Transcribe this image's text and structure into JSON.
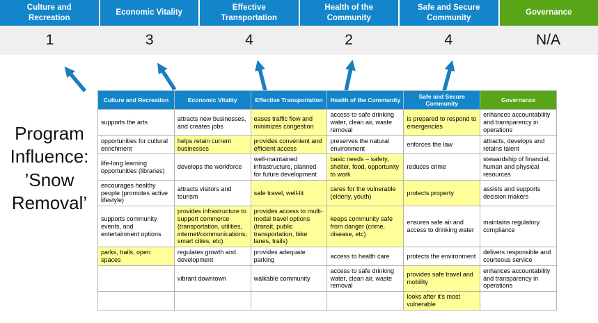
{
  "program_label": "Program Influence: ’Snow Removal’",
  "banner": {
    "score_band_color": "#efefef",
    "columns": [
      {
        "label": "Culture and Recreation",
        "score": "1",
        "color": "#1386cb"
      },
      {
        "label": "Economic Vitality",
        "score": "3",
        "color": "#1386cb"
      },
      {
        "label": "Effective Transportation",
        "score": "4",
        "color": "#1386cb"
      },
      {
        "label": "Health of the Community",
        "score": "2",
        "color": "#1386cb"
      },
      {
        "label": "Safe and Secure Community",
        "score": "4",
        "color": "#1386cb"
      },
      {
        "label": "Governance",
        "score": "N/A",
        "color": "#58a618"
      }
    ]
  },
  "arrows": {
    "color": "#1b7ec0",
    "count": 5
  },
  "matrix": {
    "highlight_color": "#ffff99",
    "headers": [
      {
        "label": "Culture and Recreation",
        "color": "#1386cb"
      },
      {
        "label": "Economic Vitality",
        "color": "#1386cb"
      },
      {
        "label": "Effective Transportation",
        "color": "#1386cb"
      },
      {
        "label": "Health of the Community",
        "color": "#1386cb"
      },
      {
        "label": "Safe and Secure Community",
        "color": "#1386cb"
      },
      {
        "label": "Governance",
        "color": "#58a618"
      }
    ],
    "rows": [
      [
        {
          "text": "supports the arts",
          "hl": false
        },
        {
          "text": "attracts new businesses, and creates jobs",
          "hl": false
        },
        {
          "text": "eases traffic flow and minimizes congestion",
          "hl": true
        },
        {
          "text": "access to safe drinking water, clean air, waste removal",
          "hl": false
        },
        {
          "text": "is prepared to respond to emergencies",
          "hl": true
        },
        {
          "text": "enhances accountability and transparency in operations",
          "hl": false
        }
      ],
      [
        {
          "text": "opportunities for cultural enrichment",
          "hl": false
        },
        {
          "text": "helps retain current businesses",
          "hl": true
        },
        {
          "text": "provides convenient and efficient access",
          "hl": true
        },
        {
          "text": "preserves the natural environment",
          "hl": false
        },
        {
          "text": "enforces the law",
          "hl": false
        },
        {
          "text": "attracts, develops and retains talent",
          "hl": false
        }
      ],
      [
        {
          "text": "life-long learning opportunities (libraries)",
          "hl": false
        },
        {
          "text": "develops the workforce",
          "hl": false
        },
        {
          "text": "well-maintained infrastructure, planned for future development",
          "hl": false
        },
        {
          "text": "basic needs – safety, shelter, food, opportunity to work",
          "hl": true
        },
        {
          "text": "reduces crime",
          "hl": false
        },
        {
          "text": "stewardship of financial, human and physical resources",
          "hl": false
        }
      ],
      [
        {
          "text": "encourages healthy people (promotes active lifestyle)",
          "hl": false
        },
        {
          "text": "attracts visitors and tourism",
          "hl": false
        },
        {
          "text": "safe travel, well-lit",
          "hl": true
        },
        {
          "text": "cares for the vulnerable (elderly, youth)",
          "hl": true
        },
        {
          "text": "protects property",
          "hl": true
        },
        {
          "text": "assists and supports decision makers",
          "hl": false
        }
      ],
      [
        {
          "text": "supports community events, and entertainment options",
          "hl": false
        },
        {
          "text": "provides infrastructure to support commerce (transportation, utilities, internet/communications, smart cities, etc)",
          "hl": true
        },
        {
          "text": "provides access to multi-modal travel options (transit, public transportation, bike lanes, trails)",
          "hl": true
        },
        {
          "text": "keeps community safe from danger (crime, disease, etc)",
          "hl": true
        },
        {
          "text": "ensures safe air and access to drinking water",
          "hl": false
        },
        {
          "text": "maintains regulatory compliance",
          "hl": false
        }
      ],
      [
        {
          "text": "parks, trails, open spaces",
          "hl": true
        },
        {
          "text": "regulates growth and development",
          "hl": false
        },
        {
          "text": "provides adequate parking",
          "hl": false
        },
        {
          "text": "access to health care",
          "hl": false
        },
        {
          "text": "protects the environment",
          "hl": false
        },
        {
          "text": "delivers responsible and courteous service",
          "hl": false
        }
      ],
      [
        {
          "text": "",
          "hl": false
        },
        {
          "text": "vibrant downtown",
          "hl": false
        },
        {
          "text": "walkable community",
          "hl": false
        },
        {
          "text": "access to safe drinking water, clean air, waste removal",
          "hl": false
        },
        {
          "text": "provides safe travel and mobility",
          "hl": true
        },
        {
          "text": "enhances accountability and transparency in operations",
          "hl": false
        }
      ],
      [
        {
          "text": "",
          "hl": false
        },
        {
          "text": "",
          "hl": false
        },
        {
          "text": "",
          "hl": false
        },
        {
          "text": "",
          "hl": false
        },
        {
          "text": "looks after it's most vulnerable",
          "hl": true
        },
        {
          "text": "",
          "hl": false
        }
      ]
    ]
  }
}
